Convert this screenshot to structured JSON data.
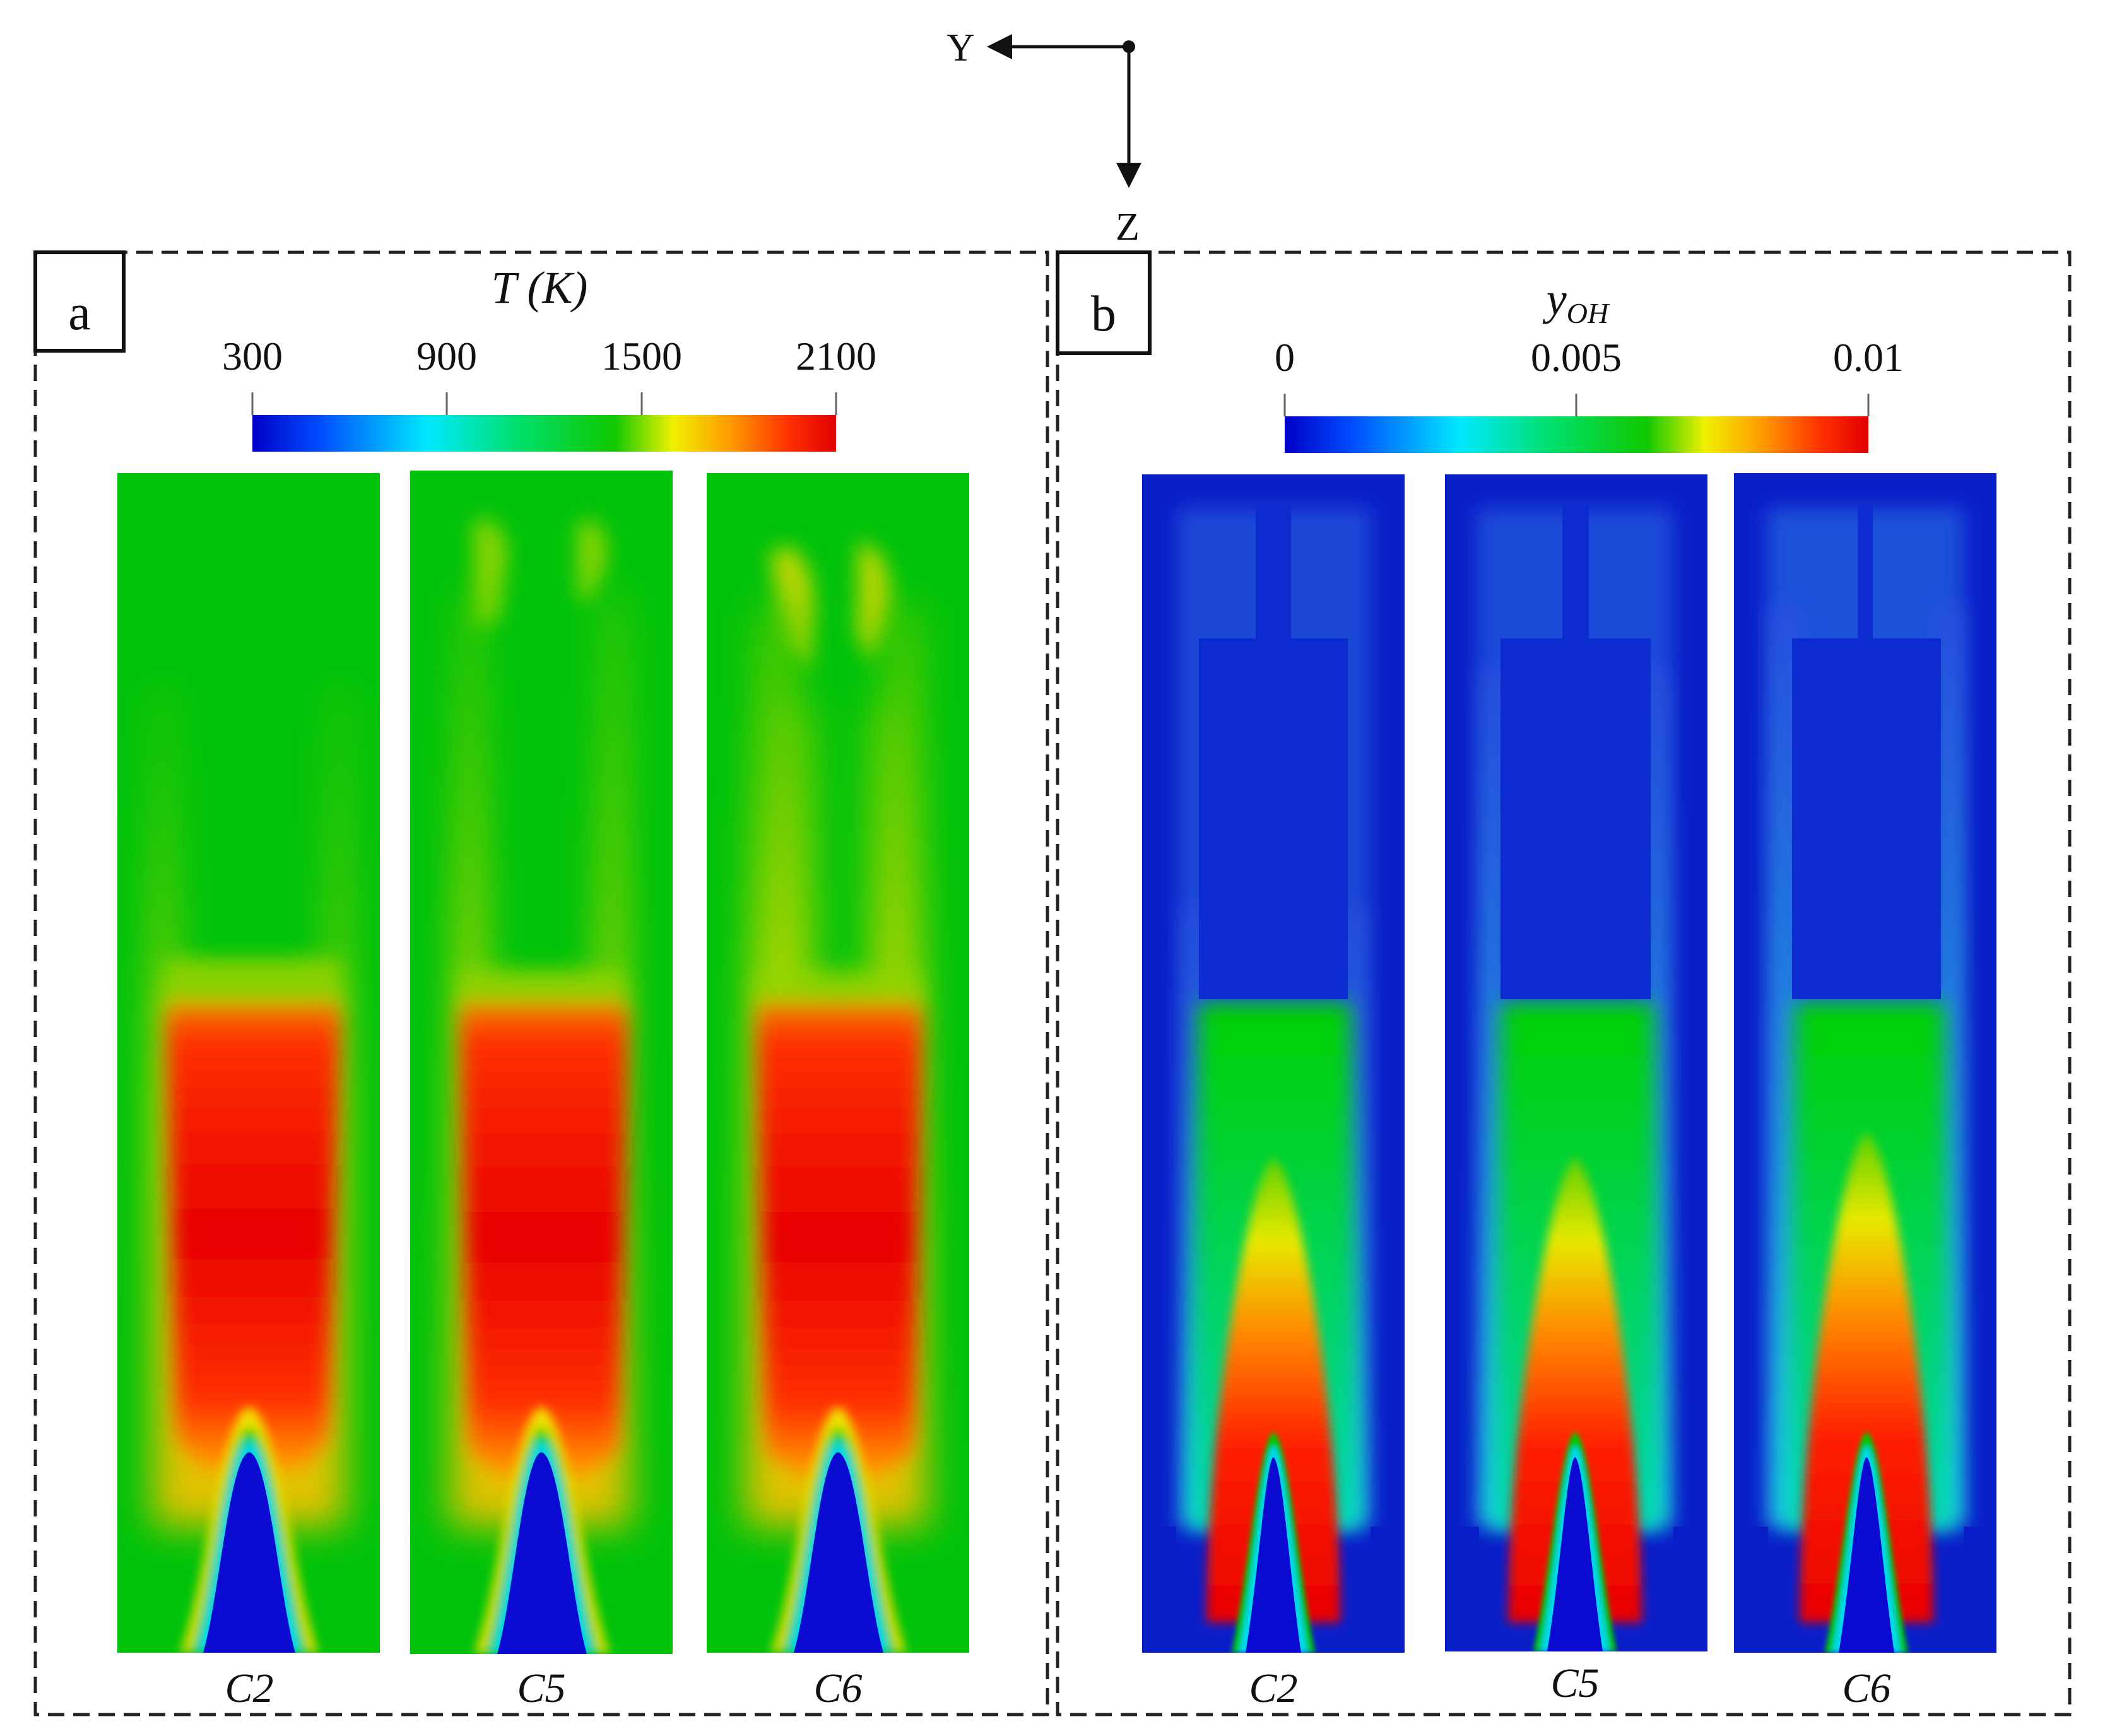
{
  "axes": {
    "y_label": "Y",
    "z_label": "Z"
  },
  "panel_a": {
    "letter": "a",
    "colorbar": {
      "title": "T (K)",
      "ticks": [
        "300",
        "900",
        "1500",
        "2100"
      ],
      "min": 300,
      "max": 2100
    },
    "cases": [
      "C2",
      "C5",
      "C6"
    ]
  },
  "panel_b": {
    "letter": "b",
    "colorbar": {
      "title": "y_OH",
      "ticks": [
        "0",
        "0.005",
        "0.01"
      ],
      "min": 0,
      "max": 0.01
    },
    "cases": [
      "C2",
      "C5",
      "C6"
    ]
  },
  "colors": {
    "jet": [
      "#0000c8",
      "#0050ff",
      "#00e8ff",
      "#00c800",
      "#2ad000",
      "#f0f000",
      "#ff9900",
      "#ff3000",
      "#e80000"
    ],
    "green_bg": "#00c20a",
    "blue_bg": "#0a1ec8",
    "hot_red": "#e81008",
    "frame": "#222222"
  }
}
